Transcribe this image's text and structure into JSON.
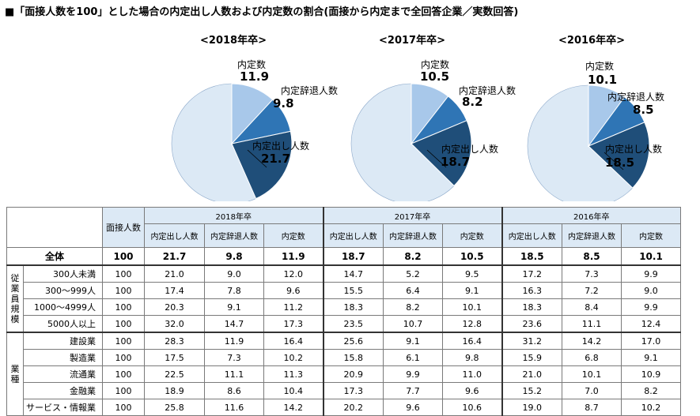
{
  "title": "■「面接人数を100」とした場合の内定出し人数および内定数の割合(面接から内定まで全回答企業／実数回答)",
  "colors": {
    "naitei": "#a8c8ea",
    "jitai": "#2f75b5",
    "dashi": "#1f4e79",
    "rest": "#dce9f5"
  },
  "chart_data": [
    {
      "type": "pie",
      "title": "<2018年卒>",
      "slices": [
        {
          "label": "内定数",
          "value": 11.9
        },
        {
          "label": "内定辞退人数",
          "value": 9.8
        },
        {
          "label": "内定出し人数",
          "value": 21.7
        }
      ]
    },
    {
      "type": "pie",
      "title": "<2017年卒>",
      "slices": [
        {
          "label": "内定数",
          "value": 10.5
        },
        {
          "label": "内定辞退人数",
          "value": 8.2
        },
        {
          "label": "内定出し人数",
          "value": 18.7
        }
      ]
    },
    {
      "type": "pie",
      "title": "<2016年卒>",
      "slices": [
        {
          "label": "内定数",
          "value": 10.1
        },
        {
          "label": "内定辞退人数",
          "value": 8.5
        },
        {
          "label": "内定出し人数",
          "value": 18.5
        }
      ]
    }
  ],
  "table": {
    "header_mensetsu": "面接人数",
    "years": [
      "2018年卒",
      "2017年卒",
      "2016年卒"
    ],
    "cols": [
      "内定出し人数",
      "内定辞退人数",
      "内定数"
    ],
    "total": {
      "label": "全体",
      "values": [
        "100",
        "21.7",
        "9.8",
        "11.9",
        "18.7",
        "8.2",
        "10.5",
        "18.5",
        "8.5",
        "10.1"
      ]
    },
    "group1": {
      "label": "従業員規模",
      "rows": [
        {
          "label": "300人未満",
          "values": [
            "100",
            "21.0",
            "9.0",
            "12.0",
            "14.7",
            "5.2",
            "9.5",
            "17.2",
            "7.3",
            "9.9"
          ]
        },
        {
          "label": "300～999人",
          "values": [
            "100",
            "17.4",
            "7.8",
            "9.6",
            "15.5",
            "6.4",
            "9.1",
            "16.3",
            "7.2",
            "9.0"
          ]
        },
        {
          "label": "1000～4999人",
          "values": [
            "100",
            "20.3",
            "9.1",
            "11.2",
            "18.3",
            "8.2",
            "10.1",
            "18.3",
            "8.4",
            "9.9"
          ]
        },
        {
          "label": "5000人以上",
          "values": [
            "100",
            "32.0",
            "14.7",
            "17.3",
            "23.5",
            "10.7",
            "12.8",
            "23.6",
            "11.1",
            "12.4"
          ]
        }
      ]
    },
    "group2": {
      "label": "業種",
      "rows": [
        {
          "label": "建設業",
          "values": [
            "100",
            "28.3",
            "11.9",
            "16.4",
            "25.6",
            "9.1",
            "16.4",
            "31.2",
            "14.2",
            "17.0"
          ]
        },
        {
          "label": "製造業",
          "values": [
            "100",
            "17.5",
            "7.3",
            "10.2",
            "15.8",
            "6.1",
            "9.8",
            "15.9",
            "6.8",
            "9.1"
          ]
        },
        {
          "label": "流通業",
          "values": [
            "100",
            "22.5",
            "11.1",
            "11.3",
            "20.9",
            "9.9",
            "11.0",
            "21.0",
            "10.1",
            "10.9"
          ]
        },
        {
          "label": "金融業",
          "values": [
            "100",
            "18.9",
            "8.6",
            "10.4",
            "17.3",
            "7.7",
            "9.6",
            "15.2",
            "7.0",
            "8.2"
          ]
        },
        {
          "label": "サービス・情報業",
          "values": [
            "100",
            "25.8",
            "11.6",
            "14.2",
            "20.2",
            "9.6",
            "10.6",
            "19.0",
            "8.7",
            "10.2"
          ]
        }
      ]
    }
  }
}
